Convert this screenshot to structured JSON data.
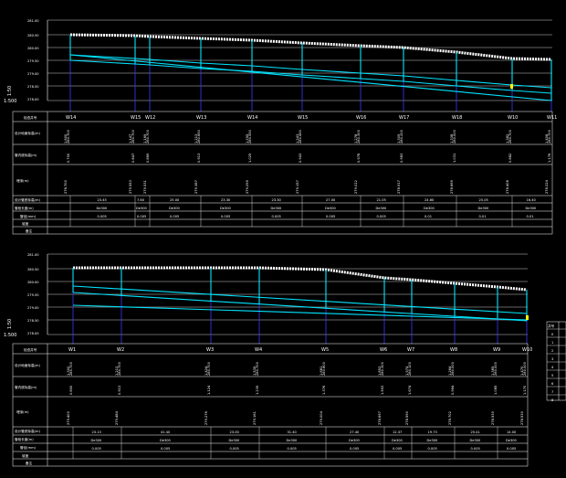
{
  "profiles": [
    {
      "elev_ticks": [
        "281.00",
        "280.50",
        "280.00",
        "279.50",
        "279.00",
        "278.50",
        "278.00"
      ],
      "scale_v": "1:50",
      "scale_h": "1:500",
      "nodes": [
        "W14",
        "W15",
        "W12",
        "W13",
        "W14",
        "W15",
        "W16",
        "W17",
        "W18",
        "W10",
        "W11"
      ],
      "row_labels": [
        "检查井号",
        "设计地面标高(m)",
        "管内底标高(m)",
        "埋深(m)",
        "设计管底标高(m)",
        "管段长度(m)",
        "管径(mm)",
        "坡度",
        "备注"
      ],
      "ground_values": [
        "280.700",
        "280.700",
        "280.700",
        "280.650",
        "280.550",
        "280.450",
        "280.300",
        "280.200",
        "280.000",
        "280.700",
        "280.700"
      ],
      "rows3": [
        "1.600",
        "1.147",
        "1.169",
        "1.213",
        "1.255",
        "1.243",
        "1.278",
        "1.309",
        "1.338",
        "1.382",
        "1.406"
      ],
      "rows4": [
        "0.700",
        "0.847",
        "0.869",
        "0.913",
        "1.025",
        "0.943",
        "0.978",
        "0.983",
        "1.031",
        "0.882",
        "1.176"
      ],
      "rows5": [
        "278.700",
        "279.553",
        "279.531",
        "279.387",
        "279.295",
        "279.157",
        "279.022",
        "278.917",
        "278.669",
        "278.408",
        "278.224"
      ],
      "lengths": [
        "23.45",
        "7.60",
        "25.00",
        "23.30",
        "23.30",
        "27.00",
        "21.05",
        "24.60",
        "25.05",
        "16.40"
      ],
      "diameters": [
        "De300",
        "De300",
        "De300",
        "De300",
        "De300",
        "De300",
        "De300",
        "De300",
        "De300",
        "De300"
      ],
      "slopes": [
        "0.005",
        "0.005",
        "0.005",
        "0.005",
        "0.005",
        "0.005",
        "0.005",
        "0.01",
        "0.01",
        "0.01"
      ]
    },
    {
      "elev_ticks": [
        "281.00",
        "280.50",
        "280.00",
        "279.50",
        "279.00",
        "278.50",
        "278.00"
      ],
      "scale_v": "1:50",
      "scale_h": "1:500",
      "nodes": [
        "W1",
        "W2",
        "W3",
        "W4",
        "W5",
        "W6",
        "W7",
        "W8",
        "W9",
        "W10"
      ],
      "row_labels": [
        "检查井号",
        "设计地面标高(m)",
        "管内底标高(m)",
        "埋深(m)",
        "设计管底标高(m)",
        "管段长度(m)",
        "管径(mm)",
        "坡度",
        "备注"
      ],
      "ground_values": [
        "280.700",
        "280.700",
        "280.700",
        "280.700",
        "280.600",
        "280.300",
        "280.100",
        "280.000",
        "280.000",
        "280.000"
      ],
      "rows3": [
        "1.300",
        "1.213",
        "1.424",
        "1.539",
        "1.681",
        "1.853",
        "1.974",
        "1.264",
        "1.385",
        "1.470"
      ],
      "rows4": [
        "0.800",
        "0.913",
        "1.124",
        "1.239",
        "1.376",
        "1.553",
        "1.674",
        "0.964",
        "1.085",
        "1.170"
      ],
      "rows5": [
        "279.400",
        "279.484",
        "279.276",
        "279.161",
        "279.004",
        "278.697",
        "278.590",
        "278.702",
        "278.530",
        "278.530"
      ],
      "lengths": [
        "23.13",
        "41.40",
        "23.00",
        "31.40",
        "27.40",
        "12.37",
        "19.73",
        "25.41",
        "14.00"
      ],
      "diameters": [
        "De300",
        "De300",
        "De300",
        "De300",
        "De300",
        "De300",
        "De300",
        "De300",
        "De300"
      ],
      "slopes": [
        "0.005",
        "0.005",
        "0.005",
        "0.005",
        "0.005",
        "0.005",
        "0.005",
        "0.005",
        "0.005"
      ]
    }
  ],
  "legend": {
    "header": "井号",
    "items": [
      "0",
      "1",
      "2",
      "3",
      "4",
      "5",
      "6",
      "7",
      "8"
    ]
  },
  "colors": {
    "background": "#000000",
    "pipe": "#00e5ff",
    "grid": "#ffffff",
    "node_line": "#3a3aff",
    "ground": "#ffffff"
  }
}
